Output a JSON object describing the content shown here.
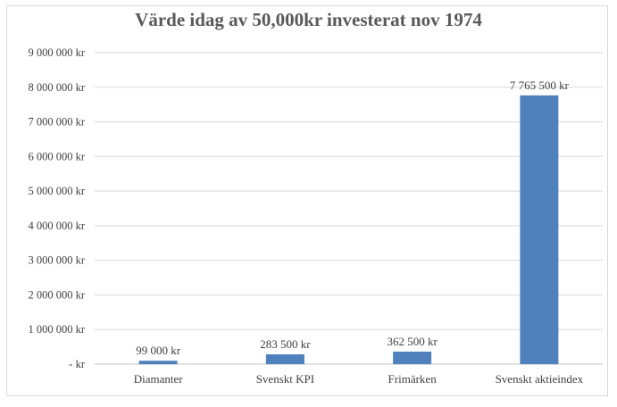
{
  "chart_data": {
    "type": "bar",
    "title": "Värde idag av 50,000kr investerat nov 1974",
    "xlabel": "",
    "ylabel": "",
    "categories": [
      "Diamanter",
      "Svenskt KPI",
      "Frimärken",
      "Svenskt aktieindex"
    ],
    "values": [
      99000,
      283500,
      362500,
      7765500
    ],
    "data_labels": [
      "99 000 kr",
      "283 500 kr",
      "362 500 kr",
      "7 765 500 kr"
    ],
    "ylim": [
      0,
      9000000
    ],
    "y_ticks": [
      0,
      1000000,
      2000000,
      3000000,
      4000000,
      5000000,
      6000000,
      7000000,
      8000000,
      9000000
    ],
    "y_tick_labels": [
      "-  kr",
      "1 000 000 kr",
      "2 000 000 kr",
      "3 000 000 kr",
      "4 000 000 kr",
      "5 000 000 kr",
      "6 000 000 kr",
      "7 000 000 kr",
      "8 000 000 kr",
      "9 000 000 kr"
    ],
    "grid": true,
    "legend": "none",
    "bar_color": "#4f81bd",
    "grid_color": "#d9d9d9"
  }
}
